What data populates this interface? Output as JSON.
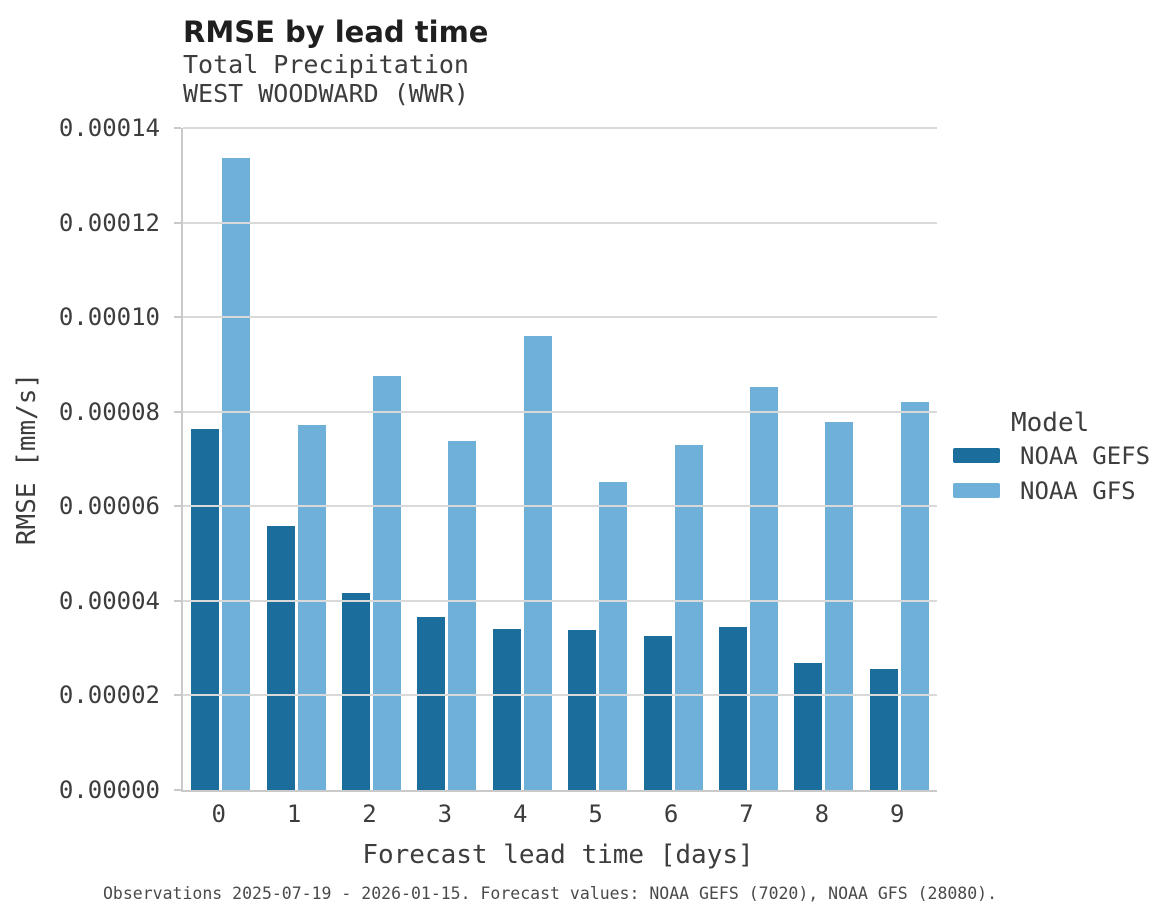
{
  "chart_data": {
    "type": "bar",
    "title": "RMSE by lead time",
    "subtitle_line1": "Total Precipitation",
    "subtitle_line2": "WEST WOODWARD (WWR)",
    "xlabel": "Forecast lead time [days]",
    "ylabel": "RMSE [mm/s]",
    "categories": [
      "0",
      "1",
      "2",
      "3",
      "4",
      "5",
      "6",
      "7",
      "8",
      "9"
    ],
    "series": [
      {
        "name": "NOAA GEFS",
        "color": "#1b6d9b",
        "values": [
          7.64e-05,
          5.59e-05,
          4.16e-05,
          3.65e-05,
          3.4e-05,
          3.39e-05,
          3.25e-05,
          3.44e-05,
          2.69e-05,
          2.56e-05
        ]
      },
      {
        "name": "NOAA GFS",
        "color": "#6fb0d8",
        "values": [
          0.0001336,
          7.71e-05,
          8.76e-05,
          7.38e-05,
          9.6e-05,
          6.51e-05,
          7.29e-05,
          8.53e-05,
          7.79e-05,
          8.2e-05
        ]
      }
    ],
    "ylim": [
      0,
      0.00014
    ],
    "yticks": [
      "0.00000",
      "0.00002",
      "0.00004",
      "0.00006",
      "0.00008",
      "0.00010",
      "0.00012",
      "0.00014"
    ],
    "grid": "horizontal",
    "legend_title": "Model",
    "legend_position": "center-right",
    "caption": "Observations 2025-07-19 - 2026-01-15. Forecast values: NOAA GEFS (7020), NOAA GFS (28080)."
  }
}
